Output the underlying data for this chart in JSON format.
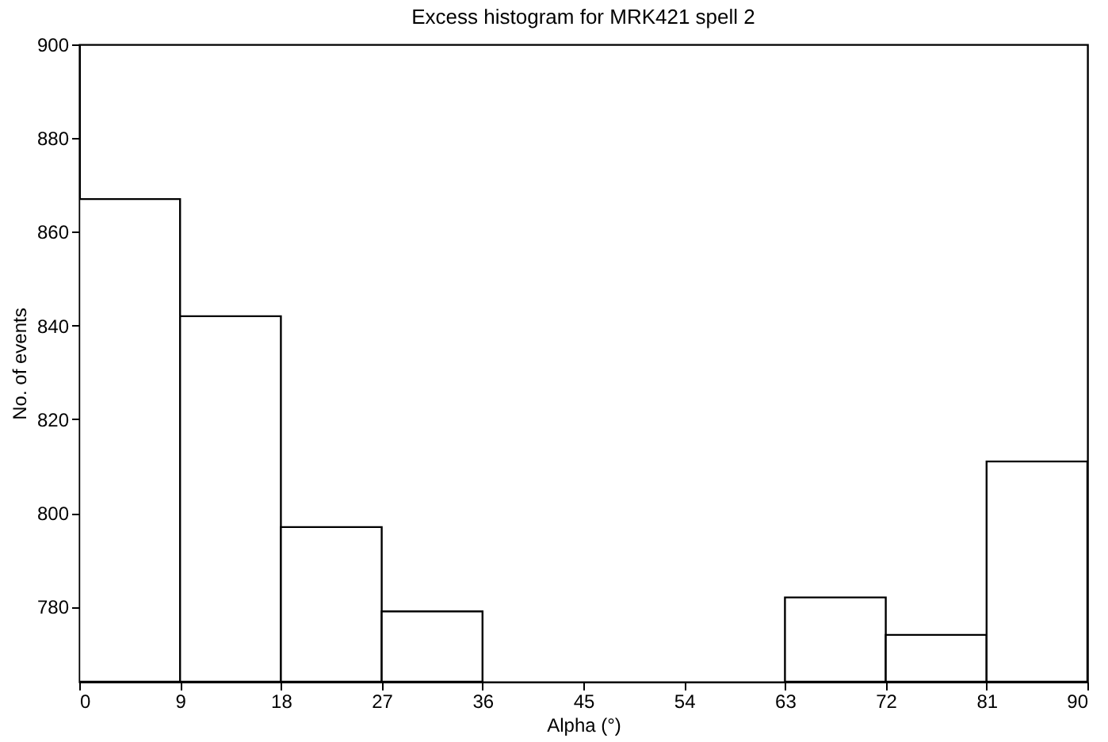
{
  "chart_data": {
    "type": "histogram",
    "title": "Excess histogram for MRK421 spell 2",
    "xlabel": "Alpha (°)",
    "ylabel": "No. of events",
    "bins": [
      0,
      9,
      18,
      27,
      36,
      45,
      54,
      63,
      72,
      81,
      90
    ],
    "values": [
      867,
      842,
      797,
      779,
      null,
      null,
      null,
      782,
      774,
      811
    ],
    "color": "#ffffff",
    "xlim": [
      0,
      90
    ],
    "xticks": [
      0,
      9,
      18,
      27,
      36,
      45,
      54,
      63,
      72,
      81,
      90
    ],
    "ylim": [
      764,
      900
    ],
    "yticks": [
      780,
      800,
      820,
      840,
      860,
      880,
      900
    ],
    "grid": false
  }
}
